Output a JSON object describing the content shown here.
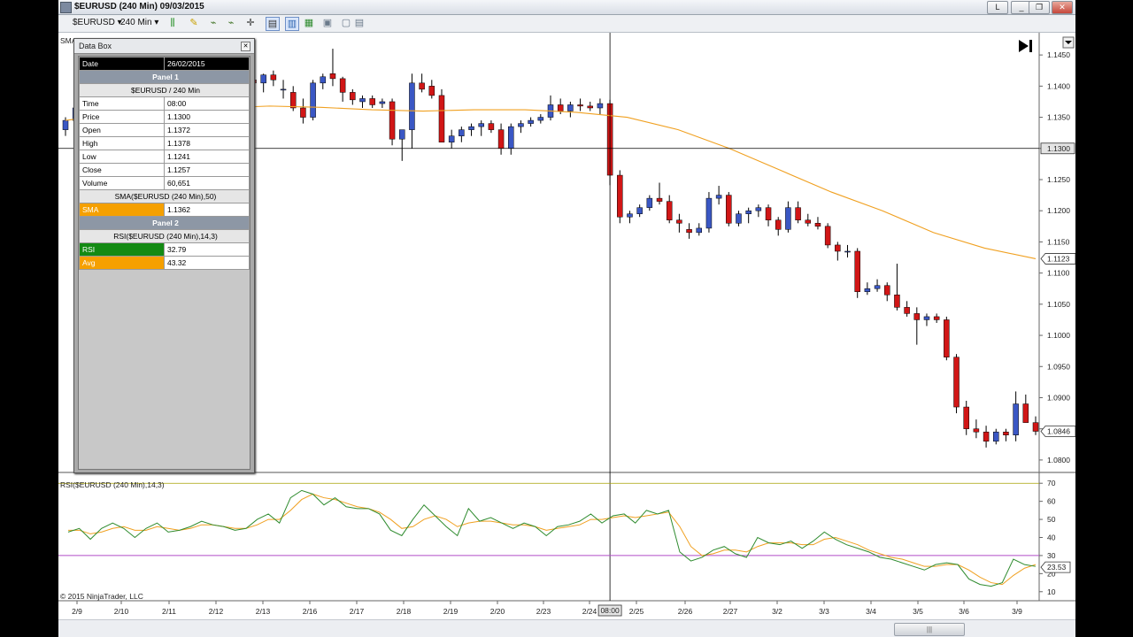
{
  "window": {
    "title": "$EURUSD (240 Min)  09/03/2015",
    "minimize_label": "_",
    "restore_label": "❐",
    "close_label": "✕",
    "link_label": "L"
  },
  "toolbar": {
    "instrument": "$EURUSD",
    "interval": "240 Min"
  },
  "colors": {
    "up_candle": "#3a57c4",
    "down_candle": "#d11616",
    "sma_line": "#f0a020",
    "rsi_line": "#2e8b2e",
    "rsi_avg": "#f0a020",
    "crosshair": "#000000"
  },
  "data_box": {
    "title": "Data Box",
    "close_icon": "close-icon",
    "rows": [
      {
        "label": "Date",
        "value": "26/02/2015",
        "style": "dark"
      },
      {
        "label": "Panel 1",
        "style": "section"
      },
      {
        "label": "$EURUSD / 240 Min",
        "style": "sub"
      },
      {
        "label": "Time",
        "value": "08:00"
      },
      {
        "label": "Price",
        "value": "1.1300"
      },
      {
        "label": "Open",
        "value": "1.1372"
      },
      {
        "label": "High",
        "value": "1.1378"
      },
      {
        "label": "Low",
        "value": "1.1241"
      },
      {
        "label": "Close",
        "value": "1.1257"
      },
      {
        "label": "Volume",
        "value": "60,651"
      },
      {
        "label": "SMA($EURUSD (240 Min),50)",
        "style": "sub"
      },
      {
        "label": "SMA",
        "value": "1.1362",
        "label_bg": "#f5a000"
      },
      {
        "label": "Panel 2",
        "style": "section"
      },
      {
        "label": "RSI($EURUSD (240 Min),14,3)",
        "style": "sub"
      },
      {
        "label": "RSI",
        "value": "32.79",
        "label_bg": "#138a13"
      },
      {
        "label": "Avg",
        "value": "43.32",
        "label_bg": "#f5a000"
      }
    ]
  },
  "price_panel": {
    "label_partial": "SMA",
    "y_ticks": [
      "1.1450",
      "1.1400",
      "1.1350",
      "1.1300",
      "1.1250",
      "1.1200",
      "1.1150",
      "1.1100",
      "1.1050",
      "1.1000",
      "1.0950",
      "1.0900",
      "1.0850",
      "1.0800"
    ],
    "crosshair_price_label": "1.1300",
    "sma_last_label": "1.1123",
    "last_price_label": "1.0846",
    "go_end_icon": "skip-to-end-icon"
  },
  "rsi_panel": {
    "label": "RSI($EURUSD (240 Min),14,3)",
    "y_ticks": [
      "70",
      "60",
      "50",
      "40",
      "30",
      "20",
      "10"
    ],
    "last_label": "23.53",
    "upper": 70,
    "lower": 30
  },
  "x_axis": {
    "labels": [
      "2/9",
      "2/10",
      "2/11",
      "2/12",
      "2/13",
      "2/16",
      "2/17",
      "2/18",
      "2/19",
      "2/20",
      "2/23",
      "2/24",
      "2/25",
      "2/26",
      "2/27",
      "3/2",
      "3/3",
      "3/4",
      "3/5",
      "3/6",
      "3/9"
    ],
    "crosshair_time_label": "08:00"
  },
  "copyright": "© 2015 NinjaTrader, LLC",
  "scrollbar": {
    "thumb_grip": "|||"
  },
  "chart_data": {
    "type": "candlestick",
    "instrument": "$EURUSD",
    "interval": "240 Min",
    "candles": [
      [
        1.133,
        1.135,
        1.132,
        1.1345
      ],
      [
        1.1345,
        1.137,
        1.134,
        1.1365
      ],
      [
        1.136,
        1.138,
        1.1355,
        1.1372
      ],
      [
        1.1372,
        1.139,
        1.136,
        1.1382
      ],
      [
        1.14,
        1.142,
        1.138,
        1.1395
      ],
      [
        1.1395,
        1.144,
        1.139,
        1.1435
      ],
      [
        1.1435,
        1.145,
        1.142,
        1.144
      ],
      [
        1.144,
        1.1445,
        1.1395,
        1.14
      ],
      [
        1.14,
        1.1415,
        1.1385,
        1.141
      ],
      [
        1.1395,
        1.1415,
        1.138,
        1.141
      ],
      [
        1.141,
        1.1425,
        1.1405,
        1.142
      ],
      [
        1.142,
        1.144,
        1.14,
        1.141
      ],
      [
        1.141,
        1.142,
        1.137,
        1.1375
      ],
      [
        1.1375,
        1.138,
        1.132,
        1.134
      ],
      [
        1.134,
        1.136,
        1.131,
        1.135
      ],
      [
        1.1355,
        1.138,
        1.134,
        1.1378
      ],
      [
        1.138,
        1.143,
        1.137,
        1.1425
      ],
      [
        1.142,
        1.146,
        1.141,
        1.1415
      ],
      [
        1.1415,
        1.1425,
        1.14,
        1.142
      ],
      [
        1.141,
        1.1425,
        1.1395,
        1.1405
      ],
      [
        1.1405,
        1.142,
        1.139,
        1.1418
      ],
      [
        1.1418,
        1.1425,
        1.14,
        1.141
      ],
      [
        1.1395,
        1.141,
        1.138,
        1.1395
      ],
      [
        1.139,
        1.14,
        1.136,
        1.1365
      ],
      [
        1.1365,
        1.138,
        1.134,
        1.135
      ],
      [
        1.135,
        1.141,
        1.1345,
        1.1405
      ],
      [
        1.1405,
        1.142,
        1.1395,
        1.1415
      ],
      [
        1.142,
        1.146,
        1.14,
        1.1412
      ],
      [
        1.1412,
        1.1415,
        1.1375,
        1.139
      ],
      [
        1.139,
        1.1395,
        1.137,
        1.1378
      ],
      [
        1.1375,
        1.1385,
        1.1365,
        1.138
      ],
      [
        1.138,
        1.1385,
        1.1365,
        1.137
      ],
      [
        1.1372,
        1.138,
        1.1365,
        1.1375
      ],
      [
        1.1375,
        1.138,
        1.1305,
        1.1315
      ],
      [
        1.1315,
        1.133,
        1.128,
        1.133
      ],
      [
        1.133,
        1.142,
        1.13,
        1.1405
      ],
      [
        1.1405,
        1.142,
        1.139,
        1.1395
      ],
      [
        1.14,
        1.141,
        1.138,
        1.1385
      ],
      [
        1.1385,
        1.1395,
        1.131,
        1.131
      ],
      [
        1.131,
        1.133,
        1.13,
        1.132
      ],
      [
        1.132,
        1.1335,
        1.131,
        1.133
      ],
      [
        1.133,
        1.134,
        1.132,
        1.1335
      ],
      [
        1.1335,
        1.1345,
        1.132,
        1.134
      ],
      [
        1.134,
        1.1345,
        1.1325,
        1.133
      ],
      [
        1.133,
        1.134,
        1.129,
        1.13
      ],
      [
        1.13,
        1.134,
        1.129,
        1.1335
      ],
      [
        1.1335,
        1.1345,
        1.1325,
        1.134
      ],
      [
        1.134,
        1.135,
        1.1335,
        1.1345
      ],
      [
        1.1345,
        1.1355,
        1.134,
        1.135
      ],
      [
        1.135,
        1.1385,
        1.1345,
        1.137
      ],
      [
        1.137,
        1.138,
        1.1355,
        1.136
      ],
      [
        1.136,
        1.1375,
        1.135,
        1.137
      ],
      [
        1.137,
        1.138,
        1.136,
        1.1368
      ],
      [
        1.1368,
        1.1375,
        1.136,
        1.1365
      ],
      [
        1.1365,
        1.138,
        1.1355,
        1.1372
      ],
      [
        1.1372,
        1.1378,
        1.1241,
        1.1257
      ],
      [
        1.1257,
        1.1265,
        1.118,
        1.119
      ],
      [
        1.119,
        1.12,
        1.118,
        1.1195
      ],
      [
        1.1195,
        1.121,
        1.119,
        1.1205
      ],
      [
        1.1205,
        1.1225,
        1.12,
        1.122
      ],
      [
        1.122,
        1.1245,
        1.121,
        1.1215
      ],
      [
        1.1215,
        1.1225,
        1.118,
        1.1185
      ],
      [
        1.1185,
        1.1195,
        1.1165,
        1.118
      ],
      [
        1.117,
        1.118,
        1.1155,
        1.1165
      ],
      [
        1.1165,
        1.118,
        1.116,
        1.1172
      ],
      [
        1.1172,
        1.123,
        1.1165,
        1.122
      ],
      [
        1.122,
        1.124,
        1.121,
        1.1225
      ],
      [
        1.1225,
        1.123,
        1.1175,
        1.118
      ],
      [
        1.118,
        1.12,
        1.1175,
        1.1195
      ],
      [
        1.1195,
        1.1205,
        1.118,
        1.12
      ],
      [
        1.12,
        1.121,
        1.119,
        1.1205
      ],
      [
        1.1205,
        1.121,
        1.1175,
        1.1185
      ],
      [
        1.1185,
        1.119,
        1.116,
        1.117
      ],
      [
        1.117,
        1.1215,
        1.1165,
        1.1205
      ],
      [
        1.1205,
        1.1215,
        1.118,
        1.1185
      ],
      [
        1.1185,
        1.1195,
        1.1175,
        1.118
      ],
      [
        1.118,
        1.119,
        1.117,
        1.1175
      ],
      [
        1.1175,
        1.118,
        1.114,
        1.1145
      ],
      [
        1.1145,
        1.115,
        1.112,
        1.1135
      ],
      [
        1.1135,
        1.1145,
        1.1125,
        1.1135
      ],
      [
        1.1135,
        1.114,
        1.106,
        1.107
      ],
      [
        1.107,
        1.1085,
        1.1065,
        1.1075
      ],
      [
        1.1075,
        1.109,
        1.107,
        1.108
      ],
      [
        1.108,
        1.1085,
        1.1055,
        1.1065
      ],
      [
        1.1065,
        1.1115,
        1.104,
        1.1045
      ],
      [
        1.1045,
        1.1055,
        1.103,
        1.1035
      ],
      [
        1.1035,
        1.1045,
        1.0985,
        1.1025
      ],
      [
        1.1025,
        1.1035,
        1.1015,
        1.103
      ],
      [
        1.103,
        1.1035,
        1.102,
        1.1025
      ],
      [
        1.1025,
        1.103,
        1.096,
        1.0965
      ],
      [
        1.0965,
        1.097,
        1.0875,
        1.0885
      ],
      [
        1.0885,
        1.0895,
        1.084,
        1.085
      ],
      [
        1.085,
        1.0865,
        1.0835,
        1.0845
      ],
      [
        1.0845,
        1.0855,
        1.082,
        1.083
      ],
      [
        1.083,
        1.085,
        1.0825,
        1.0845
      ],
      [
        1.0845,
        1.085,
        1.083,
        1.084
      ],
      [
        1.084,
        1.091,
        1.083,
        1.089
      ],
      [
        1.089,
        1.0905,
        1.086,
        1.086
      ],
      [
        1.086,
        1.087,
        1.084,
        1.0846
      ]
    ],
    "sma": [
      1.1345,
      1.1355,
      1.136,
      1.1365,
      1.1368,
      1.1366,
      1.1362,
      1.136,
      1.1362,
      1.1362,
      1.1358,
      1.135,
      1.133,
      1.13,
      1.1265,
      1.123,
      1.12,
      1.1165,
      1.114,
      1.1123
    ],
    "rsi": [
      43,
      45,
      39,
      45,
      48,
      45,
      40,
      45,
      48,
      43,
      44,
      46,
      49,
      47,
      46,
      44,
      45,
      50,
      53,
      48,
      62,
      66,
      64,
      58,
      62,
      57,
      56,
      56,
      53,
      44,
      41,
      50,
      58,
      52,
      46,
      41,
      56,
      49,
      51,
      48,
      45,
      48,
      46,
      41,
      46,
      47,
      49,
      53,
      48,
      52,
      53,
      48,
      55,
      53,
      55,
      32,
      27,
      29,
      33,
      35,
      31,
      29,
      40,
      37,
      36,
      38,
      34,
      38,
      43,
      39,
      36,
      34,
      32,
      29,
      28,
      26,
      24,
      22,
      25,
      26,
      25,
      17,
      14,
      13,
      15,
      28,
      25,
      24
    ],
    "rsi_avg": [
      44,
      44,
      42,
      43,
      45,
      46,
      44,
      44,
      46,
      45,
      44,
      45,
      47,
      47,
      46,
      45,
      45,
      47,
      50,
      50,
      55,
      61,
      64,
      62,
      61,
      59,
      57,
      56,
      54,
      50,
      45,
      46,
      50,
      52,
      50,
      46,
      48,
      49,
      49,
      48,
      47,
      47,
      46,
      44,
      45,
      46,
      47,
      50,
      50,
      51,
      52,
      51,
      52,
      53,
      54,
      46,
      35,
      30,
      31,
      33,
      33,
      32,
      35,
      37,
      37,
      37,
      36,
      36,
      39,
      40,
      38,
      36,
      33,
      31,
      29,
      28,
      26,
      24,
      24,
      25,
      25,
      22,
      18,
      15,
      14,
      19,
      23,
      25
    ],
    "price_ylim": [
      1.078,
      1.148
    ],
    "rsi_ylim": [
      5,
      75
    ],
    "x_labels": [
      "2/9",
      "2/10",
      "2/11",
      "2/12",
      "2/13",
      "2/16",
      "2/17",
      "2/18",
      "2/19",
      "2/20",
      "2/23",
      "2/24",
      "2/25",
      "2/26",
      "2/27",
      "3/2",
      "3/3",
      "3/4",
      "3/5",
      "3/6",
      "3/9"
    ]
  }
}
